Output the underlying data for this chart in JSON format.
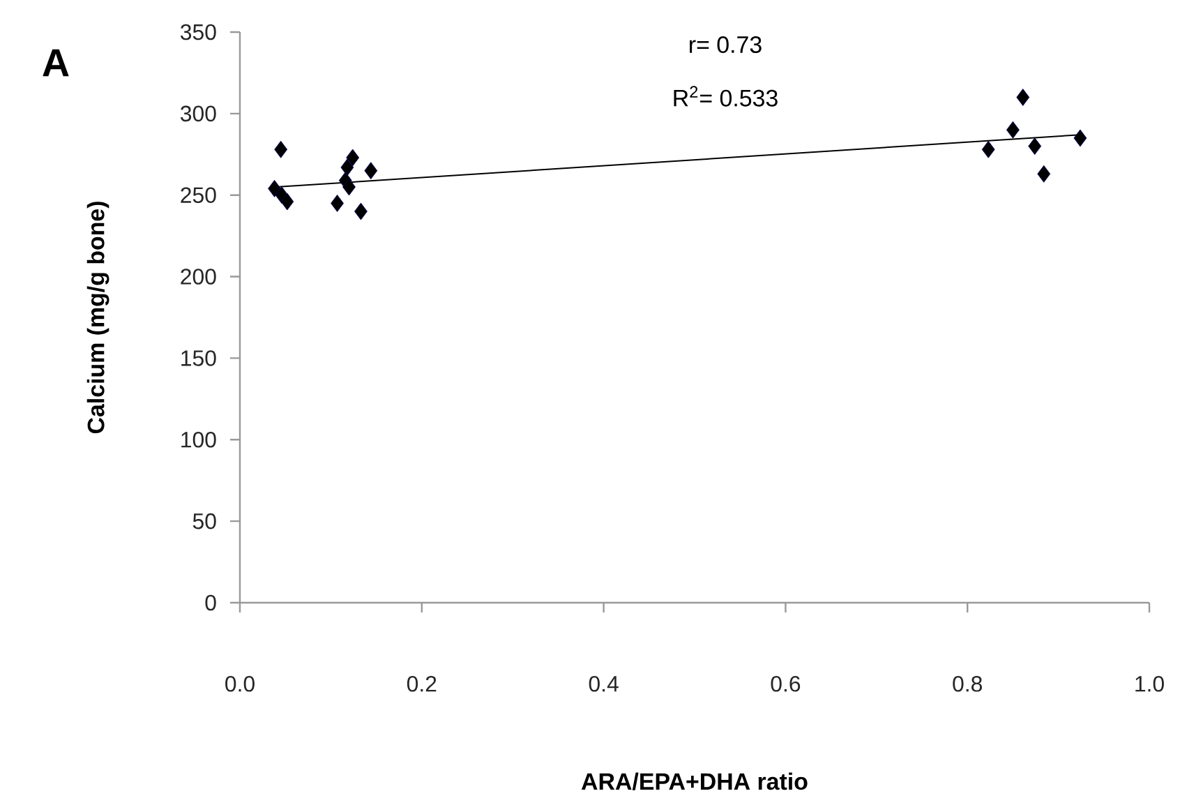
{
  "chart_data": {
    "type": "scatter",
    "xlabel": "ARA/EPA+DHA ratio",
    "ylabel": "Calcium (mg/g bone)",
    "annotations": [
      "A",
      "r= 0.73",
      "R$^{2}$= 0.533"
    ],
    "series": [
      {
        "color": "#000000",
        "marker": "diamond",
        "x": [
          0.045,
          0.038,
          0.046,
          0.052,
          0.124,
          0.118,
          0.116,
          0.12,
          0.144,
          0.107,
          0.133,
          0.823,
          0.85,
          0.861,
          0.874,
          0.884,
          0.924
        ],
        "values": [
          278,
          254,
          250,
          246,
          273,
          267,
          259,
          255,
          265,
          245,
          240,
          278,
          290,
          310,
          280,
          263,
          285
        ]
      },
      {
        "type": "line",
        "color": "#000000",
        "x": [
          0.04,
          0.924
        ],
        "values": [
          255,
          287
        ]
      }
    ],
    "xlim": [
      0,
      1
    ],
    "ylim": [
      0,
      350
    ],
    "xticks": [
      {
        "value": 0,
        "label": "0.0"
      },
      {
        "value": 0.2,
        "label": "0.2"
      },
      {
        "value": 0.4,
        "label": "0.4"
      },
      {
        "value": 0.6,
        "label": "0.6"
      },
      {
        "value": 0.8,
        "label": "0.8"
      },
      {
        "value": 1,
        "label": "1.0"
      }
    ],
    "yticks": [
      0,
      50,
      100,
      150,
      200,
      250,
      300,
      350
    ]
  }
}
